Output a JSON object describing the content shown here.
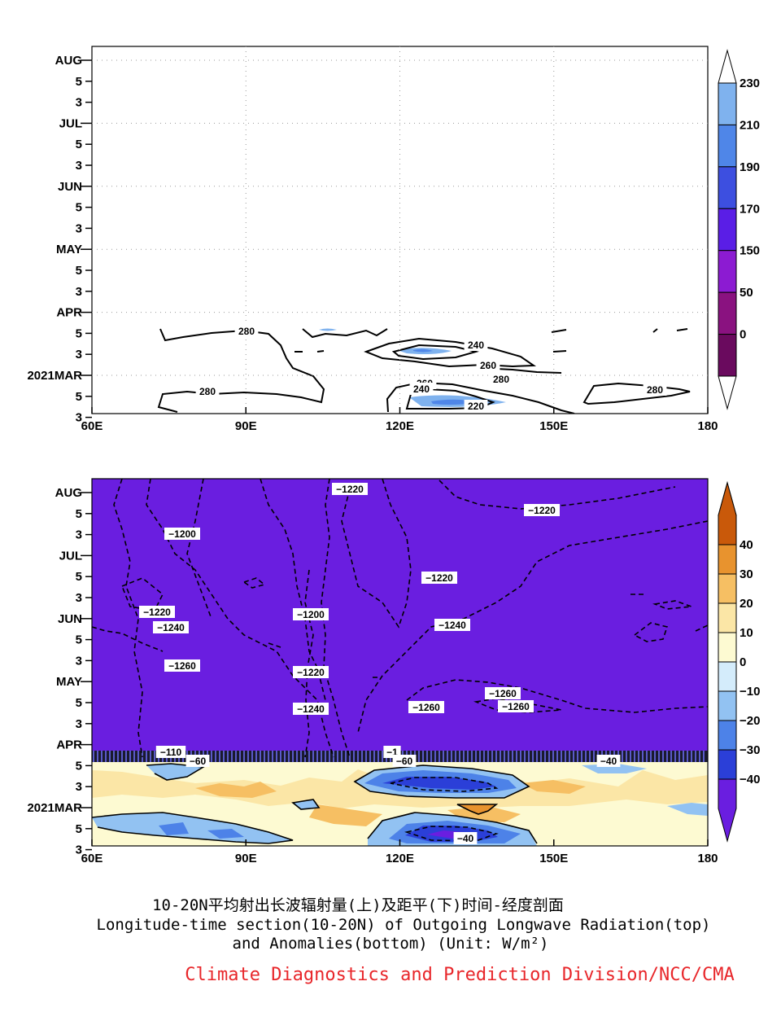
{
  "captions": {
    "cn": "10-20N平均射出长波辐射量(上)及距平(下)时间-经度剖面",
    "en1": "Longitude-time section(10-20N) of Outgoing Longwave Radiation(top)",
    "en2": "and Anomalies(bottom) (Unit: W/m²)",
    "credit": "Climate Diagnostics and Prediction Division/NCC/CMA",
    "credit_color": "#e8262a"
  },
  "chart_data": [
    {
      "type": "heatmap",
      "name": "OLR",
      "xlim": [
        60,
        180
      ],
      "xticks": [
        {
          "v": 60,
          "label": "60E"
        },
        {
          "v": 90,
          "label": "90E"
        },
        {
          "v": 120,
          "label": "120E"
        },
        {
          "v": 150,
          "label": "150E"
        },
        {
          "v": 180,
          "label": "180"
        }
      ],
      "yticks": [
        "AUG",
        "5",
        "3",
        "JUL",
        "5",
        "3",
        "JUN",
        "5",
        "3",
        "MAY",
        "5",
        "3",
        "APR",
        "5",
        "3",
        "2021MAR",
        "5",
        "3"
      ],
      "colorbar": {
        "labels": [
          "230",
          "210",
          "190",
          "170",
          "150",
          "50",
          "0"
        ],
        "colors": [
          "#7fb2ee",
          "#4f86e8",
          "#3d4fe0",
          "#5a1ee6",
          "#8c1bd2",
          "#8a1280",
          "#6a0a5e"
        ]
      },
      "contour_labels": [
        "280",
        "240",
        "260",
        "280",
        "260",
        "220",
        "240",
        "280",
        "280"
      ]
    },
    {
      "type": "heatmap",
      "name": "OLR anomaly",
      "xlim": [
        60,
        180
      ],
      "xticks": [
        {
          "v": 60,
          "label": "60E"
        },
        {
          "v": 90,
          "label": "90E"
        },
        {
          "v": 120,
          "label": "120E"
        },
        {
          "v": 150,
          "label": "150E"
        },
        {
          "v": 180,
          "label": "180"
        }
      ],
      "yticks": [
        "AUG",
        "5",
        "3",
        "JUL",
        "5",
        "3",
        "JUN",
        "5",
        "3",
        "MAY",
        "5",
        "3",
        "APR",
        "5",
        "3",
        "2021MAR",
        "5",
        "3"
      ],
      "colorbar": {
        "labels": [
          "40",
          "30",
          "20",
          "10",
          "0",
          "−10",
          "−20",
          "−30",
          "−40"
        ],
        "colors": [
          "#c9590a",
          "#e8932e",
          "#f6bf63",
          "#fbe6a6",
          "#fdfad2",
          "#d4ecfb",
          "#92c2f2",
          "#4d82e8",
          "#2b3fd8",
          "#6a1ee0"
        ]
      },
      "contour_labels": [
        "−1220",
        "−1220",
        "−1200",
        "−1220",
        "−1220",
        "−1240",
        "−1240",
        "−1200",
        "−1260",
        "−1220",
        "−1260",
        "−1240",
        "−1260",
        "−1260",
        "−110",
        "−60",
        "−1",
        "−60",
        "−40",
        "−40"
      ]
    }
  ]
}
